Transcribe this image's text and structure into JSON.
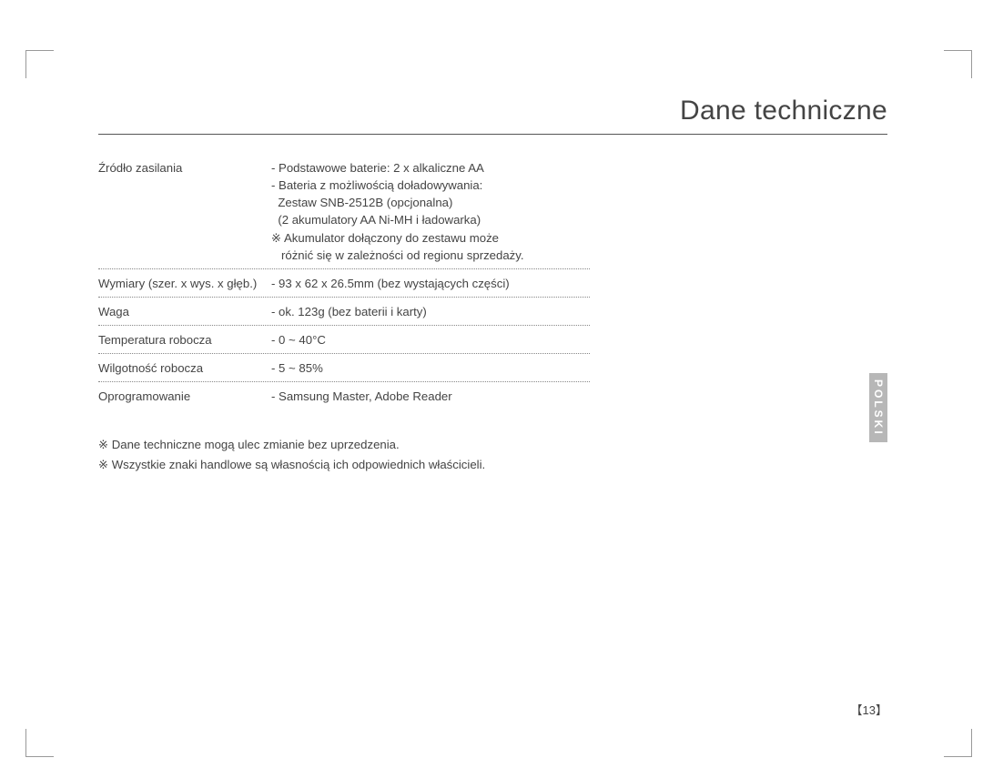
{
  "page": {
    "title": "Dane techniczne",
    "lang_tab": "POLSKI",
    "page_number_open": "【",
    "page_number": "13",
    "page_number_close": "】"
  },
  "specs": {
    "power": {
      "label": "Źródło zasilania",
      "l1": "- Podstawowe baterie: 2 x alkaliczne AA",
      "l2": "- Bateria z możliwością doładowywania:",
      "l3": "  Zestaw SNB-2512B (opcjonalna)",
      "l4": "  (2 akumulatory AA Ni-MH i ładowarka)",
      "l5": "※ Akumulator dołączony do zestawu może",
      "l6": "   różnić się w zależności od regionu sprzedaży."
    },
    "dim": {
      "label": "Wymiary (szer. x wys. x głęb.)",
      "val": "- 93 x 62 x 26.5mm (bez wystających części)"
    },
    "weight": {
      "label": "Waga",
      "val": "- ok. 123g (bez baterii i karty)"
    },
    "temp": {
      "label": "Temperatura robocza",
      "val": "- 0 ~ 40°C"
    },
    "humidity": {
      "label": "Wilgotność robocza",
      "val": "- 5 ~ 85%"
    },
    "software": {
      "label": "Oprogramowanie",
      "val": "- Samsung Master, Adobe Reader"
    }
  },
  "notes": {
    "n1": "※  Dane techniczne mogą ulec zmianie bez uprzedzenia.",
    "n2": "※  Wszystkie znaki handlowe są własnością ich odpowiednich właścicieli."
  },
  "colors": {
    "text": "#444444",
    "tab_bg": "#b7b7b7",
    "tab_text": "#ffffff",
    "rule": "#555555",
    "dotted": "#888888",
    "background": "#ffffff"
  }
}
